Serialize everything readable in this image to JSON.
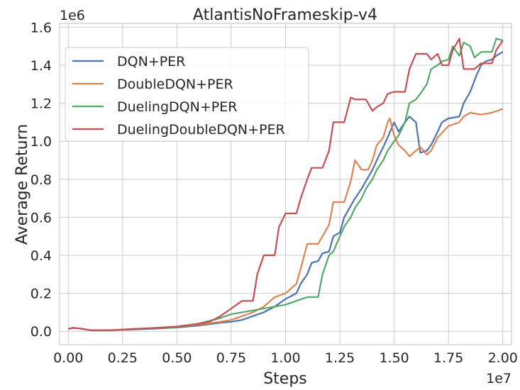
{
  "chart_data": {
    "type": "line",
    "title": "AtlantisNoFrameskip-v4",
    "xlabel": "Steps",
    "ylabel": "Average Return",
    "x_offset_label": "1e7",
    "y_offset_label": "1e6",
    "xlim": [
      -0.04,
      2.04
    ],
    "ylim": [
      -0.07,
      1.62
    ],
    "x_ticks": [
      0.0,
      0.25,
      0.5,
      0.75,
      1.0,
      1.25,
      1.5,
      1.75,
      2.0
    ],
    "x_tick_labels": [
      "0.00",
      "0.25",
      "0.50",
      "0.75",
      "1.00",
      "1.25",
      "1.50",
      "1.75",
      "2.00"
    ],
    "y_ticks": [
      0.0,
      0.2,
      0.4,
      0.6,
      0.8,
      1.0,
      1.2,
      1.4,
      1.6
    ],
    "y_tick_labels": [
      "0.0",
      "0.2",
      "0.4",
      "0.6",
      "0.8",
      "1.0",
      "1.2",
      "1.4",
      "1.6"
    ],
    "grid": true,
    "legend_position": "upper-left",
    "series": [
      {
        "name": "DQN+PER",
        "color": "#4c72b0",
        "points": [
          [
            0.0,
            0.012
          ],
          [
            0.02,
            0.018
          ],
          [
            0.05,
            0.015
          ],
          [
            0.1,
            0.006
          ],
          [
            0.2,
            0.006
          ],
          [
            0.3,
            0.01
          ],
          [
            0.4,
            0.014
          ],
          [
            0.5,
            0.02
          ],
          [
            0.6,
            0.03
          ],
          [
            0.7,
            0.045
          ],
          [
            0.75,
            0.05
          ],
          [
            0.8,
            0.06
          ],
          [
            0.85,
            0.08
          ],
          [
            0.9,
            0.1
          ],
          [
            0.95,
            0.13
          ],
          [
            1.0,
            0.17
          ],
          [
            1.05,
            0.2
          ],
          [
            1.07,
            0.25
          ],
          [
            1.1,
            0.3
          ],
          [
            1.12,
            0.36
          ],
          [
            1.15,
            0.37
          ],
          [
            1.17,
            0.41
          ],
          [
            1.2,
            0.42
          ],
          [
            1.22,
            0.5
          ],
          [
            1.25,
            0.52
          ],
          [
            1.27,
            0.6
          ],
          [
            1.3,
            0.66
          ],
          [
            1.32,
            0.7
          ],
          [
            1.35,
            0.75
          ],
          [
            1.37,
            0.79
          ],
          [
            1.4,
            0.85
          ],
          [
            1.42,
            0.9
          ],
          [
            1.45,
            0.97
          ],
          [
            1.47,
            1.02
          ],
          [
            1.5,
            1.1
          ],
          [
            1.52,
            1.05
          ],
          [
            1.55,
            1.1
          ],
          [
            1.57,
            1.13
          ],
          [
            1.6,
            1.1
          ],
          [
            1.62,
            0.94
          ],
          [
            1.65,
            0.95
          ],
          [
            1.67,
            0.98
          ],
          [
            1.7,
            1.05
          ],
          [
            1.72,
            1.1
          ],
          [
            1.75,
            1.12
          ],
          [
            1.8,
            1.13
          ],
          [
            1.82,
            1.2
          ],
          [
            1.85,
            1.26
          ],
          [
            1.88,
            1.35
          ],
          [
            1.9,
            1.4
          ],
          [
            1.92,
            1.42
          ],
          [
            1.95,
            1.43
          ],
          [
            1.97,
            1.45
          ],
          [
            2.0,
            1.47
          ]
        ]
      },
      {
        "name": "DoubleDQN+PER",
        "color": "#dd8452",
        "points": [
          [
            0.0,
            0.012
          ],
          [
            0.02,
            0.018
          ],
          [
            0.05,
            0.015
          ],
          [
            0.1,
            0.006
          ],
          [
            0.2,
            0.006
          ],
          [
            0.3,
            0.012
          ],
          [
            0.4,
            0.016
          ],
          [
            0.5,
            0.022
          ],
          [
            0.6,
            0.035
          ],
          [
            0.7,
            0.05
          ],
          [
            0.75,
            0.06
          ],
          [
            0.8,
            0.08
          ],
          [
            0.85,
            0.1
          ],
          [
            0.9,
            0.13
          ],
          [
            0.95,
            0.18
          ],
          [
            1.0,
            0.2
          ],
          [
            1.05,
            0.25
          ],
          [
            1.07,
            0.33
          ],
          [
            1.1,
            0.46
          ],
          [
            1.15,
            0.46
          ],
          [
            1.17,
            0.5
          ],
          [
            1.2,
            0.56
          ],
          [
            1.22,
            0.68
          ],
          [
            1.27,
            0.68
          ],
          [
            1.3,
            0.79
          ],
          [
            1.32,
            0.9
          ],
          [
            1.35,
            0.85
          ],
          [
            1.38,
            0.85
          ],
          [
            1.4,
            0.9
          ],
          [
            1.42,
            0.98
          ],
          [
            1.45,
            1.02
          ],
          [
            1.47,
            1.1
          ],
          [
            1.48,
            1.12
          ],
          [
            1.5,
            1.03
          ],
          [
            1.52,
            0.98
          ],
          [
            1.55,
            0.95
          ],
          [
            1.57,
            0.92
          ],
          [
            1.6,
            0.95
          ],
          [
            1.62,
            0.97
          ],
          [
            1.65,
            0.93
          ],
          [
            1.67,
            0.95
          ],
          [
            1.7,
            1.02
          ],
          [
            1.75,
            1.08
          ],
          [
            1.8,
            1.1
          ],
          [
            1.82,
            1.13
          ],
          [
            1.85,
            1.15
          ],
          [
            1.9,
            1.14
          ],
          [
            1.95,
            1.15
          ],
          [
            2.0,
            1.17
          ]
        ]
      },
      {
        "name": "DuelingDQN+PER",
        "color": "#55a868",
        "points": [
          [
            0.0,
            0.012
          ],
          [
            0.02,
            0.018
          ],
          [
            0.05,
            0.015
          ],
          [
            0.1,
            0.006
          ],
          [
            0.2,
            0.006
          ],
          [
            0.3,
            0.012
          ],
          [
            0.4,
            0.016
          ],
          [
            0.5,
            0.02
          ],
          [
            0.6,
            0.04
          ],
          [
            0.7,
            0.07
          ],
          [
            0.75,
            0.09
          ],
          [
            0.8,
            0.1
          ],
          [
            0.85,
            0.11
          ],
          [
            0.9,
            0.12
          ],
          [
            0.95,
            0.13
          ],
          [
            1.0,
            0.14
          ],
          [
            1.05,
            0.16
          ],
          [
            1.1,
            0.18
          ],
          [
            1.15,
            0.18
          ],
          [
            1.17,
            0.3
          ],
          [
            1.2,
            0.4
          ],
          [
            1.22,
            0.42
          ],
          [
            1.25,
            0.5
          ],
          [
            1.27,
            0.55
          ],
          [
            1.3,
            0.6
          ],
          [
            1.32,
            0.65
          ],
          [
            1.35,
            0.7
          ],
          [
            1.37,
            0.75
          ],
          [
            1.4,
            0.8
          ],
          [
            1.42,
            0.85
          ],
          [
            1.45,
            0.9
          ],
          [
            1.47,
            0.95
          ],
          [
            1.5,
            1.0
          ],
          [
            1.52,
            1.03
          ],
          [
            1.55,
            1.1
          ],
          [
            1.57,
            1.2
          ],
          [
            1.6,
            1.22
          ],
          [
            1.62,
            1.25
          ],
          [
            1.65,
            1.3
          ],
          [
            1.67,
            1.38
          ],
          [
            1.7,
            1.4
          ],
          [
            1.72,
            1.42
          ],
          [
            1.75,
            1.43
          ],
          [
            1.77,
            1.5
          ],
          [
            1.8,
            1.45
          ],
          [
            1.82,
            1.52
          ],
          [
            1.85,
            1.5
          ],
          [
            1.87,
            1.44
          ],
          [
            1.9,
            1.47
          ],
          [
            1.95,
            1.47
          ],
          [
            1.97,
            1.54
          ],
          [
            2.0,
            1.53
          ]
        ]
      },
      {
        "name": "DuelingDoubleDQN+PER",
        "color": "#c44e52",
        "points": [
          [
            0.0,
            0.012
          ],
          [
            0.02,
            0.018
          ],
          [
            0.05,
            0.015
          ],
          [
            0.1,
            0.006
          ],
          [
            0.2,
            0.006
          ],
          [
            0.3,
            0.012
          ],
          [
            0.4,
            0.018
          ],
          [
            0.5,
            0.025
          ],
          [
            0.6,
            0.04
          ],
          [
            0.65,
            0.05
          ],
          [
            0.7,
            0.08
          ],
          [
            0.75,
            0.12
          ],
          [
            0.8,
            0.16
          ],
          [
            0.85,
            0.16
          ],
          [
            0.87,
            0.3
          ],
          [
            0.9,
            0.4
          ],
          [
            0.95,
            0.4
          ],
          [
            0.97,
            0.55
          ],
          [
            1.0,
            0.62
          ],
          [
            1.05,
            0.62
          ],
          [
            1.07,
            0.7
          ],
          [
            1.1,
            0.8
          ],
          [
            1.12,
            0.86
          ],
          [
            1.17,
            0.86
          ],
          [
            1.2,
            0.95
          ],
          [
            1.22,
            1.1
          ],
          [
            1.27,
            1.1
          ],
          [
            1.3,
            1.23
          ],
          [
            1.32,
            1.22
          ],
          [
            1.37,
            1.22
          ],
          [
            1.4,
            1.16
          ],
          [
            1.42,
            1.18
          ],
          [
            1.45,
            1.2
          ],
          [
            1.47,
            1.25
          ],
          [
            1.5,
            1.26
          ],
          [
            1.55,
            1.26
          ],
          [
            1.57,
            1.38
          ],
          [
            1.6,
            1.46
          ],
          [
            1.65,
            1.46
          ],
          [
            1.67,
            1.43
          ],
          [
            1.7,
            1.46
          ],
          [
            1.72,
            1.4
          ],
          [
            1.75,
            1.4
          ],
          [
            1.77,
            1.48
          ],
          [
            1.8,
            1.54
          ],
          [
            1.82,
            1.38
          ],
          [
            1.87,
            1.38
          ],
          [
            1.9,
            1.41
          ],
          [
            1.95,
            1.41
          ],
          [
            1.97,
            1.48
          ],
          [
            2.0,
            1.53
          ]
        ]
      }
    ]
  }
}
